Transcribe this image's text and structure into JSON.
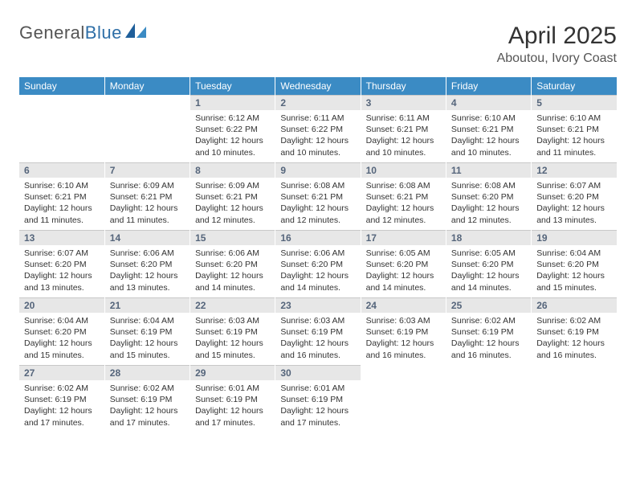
{
  "brand": {
    "name_part1": "General",
    "name_part2": "Blue"
  },
  "title": "April 2025",
  "location": "Aboutou, Ivory Coast",
  "colors": {
    "header_bg": "#3b8bc4",
    "header_text": "#ffffff",
    "daynum_bg": "#e7e7e7",
    "daynum_text": "#55657b",
    "body_text": "#333333",
    "logo_grey": "#555555",
    "logo_blue": "#2f6fa7"
  },
  "weekdays": [
    "Sunday",
    "Monday",
    "Tuesday",
    "Wednesday",
    "Thursday",
    "Friday",
    "Saturday"
  ],
  "weeks": [
    [
      null,
      null,
      {
        "day": "1",
        "sunrise": "Sunrise: 6:12 AM",
        "sunset": "Sunset: 6:22 PM",
        "daylight": "Daylight: 12 hours and 10 minutes."
      },
      {
        "day": "2",
        "sunrise": "Sunrise: 6:11 AM",
        "sunset": "Sunset: 6:22 PM",
        "daylight": "Daylight: 12 hours and 10 minutes."
      },
      {
        "day": "3",
        "sunrise": "Sunrise: 6:11 AM",
        "sunset": "Sunset: 6:21 PM",
        "daylight": "Daylight: 12 hours and 10 minutes."
      },
      {
        "day": "4",
        "sunrise": "Sunrise: 6:10 AM",
        "sunset": "Sunset: 6:21 PM",
        "daylight": "Daylight: 12 hours and 10 minutes."
      },
      {
        "day": "5",
        "sunrise": "Sunrise: 6:10 AM",
        "sunset": "Sunset: 6:21 PM",
        "daylight": "Daylight: 12 hours and 11 minutes."
      }
    ],
    [
      {
        "day": "6",
        "sunrise": "Sunrise: 6:10 AM",
        "sunset": "Sunset: 6:21 PM",
        "daylight": "Daylight: 12 hours and 11 minutes."
      },
      {
        "day": "7",
        "sunrise": "Sunrise: 6:09 AM",
        "sunset": "Sunset: 6:21 PM",
        "daylight": "Daylight: 12 hours and 11 minutes."
      },
      {
        "day": "8",
        "sunrise": "Sunrise: 6:09 AM",
        "sunset": "Sunset: 6:21 PM",
        "daylight": "Daylight: 12 hours and 12 minutes."
      },
      {
        "day": "9",
        "sunrise": "Sunrise: 6:08 AM",
        "sunset": "Sunset: 6:21 PM",
        "daylight": "Daylight: 12 hours and 12 minutes."
      },
      {
        "day": "10",
        "sunrise": "Sunrise: 6:08 AM",
        "sunset": "Sunset: 6:21 PM",
        "daylight": "Daylight: 12 hours and 12 minutes."
      },
      {
        "day": "11",
        "sunrise": "Sunrise: 6:08 AM",
        "sunset": "Sunset: 6:20 PM",
        "daylight": "Daylight: 12 hours and 12 minutes."
      },
      {
        "day": "12",
        "sunrise": "Sunrise: 6:07 AM",
        "sunset": "Sunset: 6:20 PM",
        "daylight": "Daylight: 12 hours and 13 minutes."
      }
    ],
    [
      {
        "day": "13",
        "sunrise": "Sunrise: 6:07 AM",
        "sunset": "Sunset: 6:20 PM",
        "daylight": "Daylight: 12 hours and 13 minutes."
      },
      {
        "day": "14",
        "sunrise": "Sunrise: 6:06 AM",
        "sunset": "Sunset: 6:20 PM",
        "daylight": "Daylight: 12 hours and 13 minutes."
      },
      {
        "day": "15",
        "sunrise": "Sunrise: 6:06 AM",
        "sunset": "Sunset: 6:20 PM",
        "daylight": "Daylight: 12 hours and 14 minutes."
      },
      {
        "day": "16",
        "sunrise": "Sunrise: 6:06 AM",
        "sunset": "Sunset: 6:20 PM",
        "daylight": "Daylight: 12 hours and 14 minutes."
      },
      {
        "day": "17",
        "sunrise": "Sunrise: 6:05 AM",
        "sunset": "Sunset: 6:20 PM",
        "daylight": "Daylight: 12 hours and 14 minutes."
      },
      {
        "day": "18",
        "sunrise": "Sunrise: 6:05 AM",
        "sunset": "Sunset: 6:20 PM",
        "daylight": "Daylight: 12 hours and 14 minutes."
      },
      {
        "day": "19",
        "sunrise": "Sunrise: 6:04 AM",
        "sunset": "Sunset: 6:20 PM",
        "daylight": "Daylight: 12 hours and 15 minutes."
      }
    ],
    [
      {
        "day": "20",
        "sunrise": "Sunrise: 6:04 AM",
        "sunset": "Sunset: 6:20 PM",
        "daylight": "Daylight: 12 hours and 15 minutes."
      },
      {
        "day": "21",
        "sunrise": "Sunrise: 6:04 AM",
        "sunset": "Sunset: 6:19 PM",
        "daylight": "Daylight: 12 hours and 15 minutes."
      },
      {
        "day": "22",
        "sunrise": "Sunrise: 6:03 AM",
        "sunset": "Sunset: 6:19 PM",
        "daylight": "Daylight: 12 hours and 15 minutes."
      },
      {
        "day": "23",
        "sunrise": "Sunrise: 6:03 AM",
        "sunset": "Sunset: 6:19 PM",
        "daylight": "Daylight: 12 hours and 16 minutes."
      },
      {
        "day": "24",
        "sunrise": "Sunrise: 6:03 AM",
        "sunset": "Sunset: 6:19 PM",
        "daylight": "Daylight: 12 hours and 16 minutes."
      },
      {
        "day": "25",
        "sunrise": "Sunrise: 6:02 AM",
        "sunset": "Sunset: 6:19 PM",
        "daylight": "Daylight: 12 hours and 16 minutes."
      },
      {
        "day": "26",
        "sunrise": "Sunrise: 6:02 AM",
        "sunset": "Sunset: 6:19 PM",
        "daylight": "Daylight: 12 hours and 16 minutes."
      }
    ],
    [
      {
        "day": "27",
        "sunrise": "Sunrise: 6:02 AM",
        "sunset": "Sunset: 6:19 PM",
        "daylight": "Daylight: 12 hours and 17 minutes."
      },
      {
        "day": "28",
        "sunrise": "Sunrise: 6:02 AM",
        "sunset": "Sunset: 6:19 PM",
        "daylight": "Daylight: 12 hours and 17 minutes."
      },
      {
        "day": "29",
        "sunrise": "Sunrise: 6:01 AM",
        "sunset": "Sunset: 6:19 PM",
        "daylight": "Daylight: 12 hours and 17 minutes."
      },
      {
        "day": "30",
        "sunrise": "Sunrise: 6:01 AM",
        "sunset": "Sunset: 6:19 PM",
        "daylight": "Daylight: 12 hours and 17 minutes."
      },
      null,
      null,
      null
    ]
  ]
}
